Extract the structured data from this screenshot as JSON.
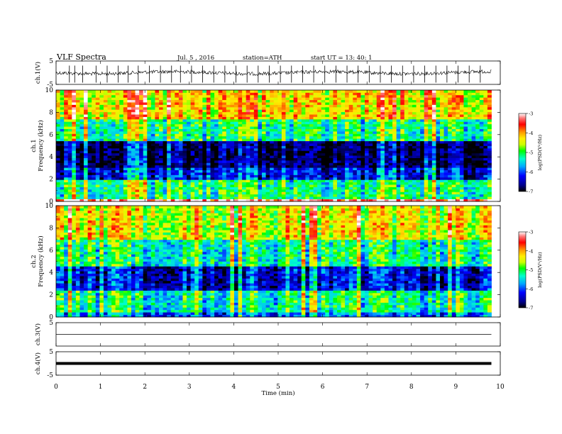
{
  "header": {
    "title": "VLF  Spectra",
    "date": "Jul.  5  , 2016",
    "station": "station=ATH",
    "start_ut": "start  UT  =   13: 40: 1"
  },
  "chart_data": [
    {
      "type": "line",
      "ylabel": "ch.1(V)",
      "ylim": [
        -5,
        5
      ],
      "yticks": [
        "5",
        "-5"
      ],
      "baseline": 0.0,
      "spikes_min": [
        0.3,
        0.42,
        0.6,
        0.9,
        1.15,
        1.4,
        1.62,
        1.85,
        2.1,
        2.35,
        2.6,
        2.8,
        3.05,
        3.3,
        3.55,
        3.8,
        4.05,
        4.3,
        4.55,
        4.8,
        5.05,
        5.3,
        5.55,
        5.8,
        6.05,
        6.3,
        6.55,
        6.8,
        7.05,
        7.3,
        7.55,
        7.8,
        8.05,
        8.3,
        8.55,
        8.8,
        9.05,
        9.3,
        9.55
      ]
    },
    {
      "type": "heatmap",
      "ylabel": "ch.1\nFrequency (kHz)",
      "ylim": [
        0,
        10
      ],
      "yticks": [
        "0",
        "2",
        "4",
        "6",
        "8",
        "10"
      ],
      "colorbar": {
        "label": "log(PSD(V²/Hz)",
        "ticks": [
          "-3",
          "-4",
          "-5",
          "-6",
          "-7"
        ],
        "range": [
          -7,
          -3
        ]
      },
      "description_bands": [
        {
          "fmin": 0.0,
          "fmax": 0.2,
          "level": -3.3
        },
        {
          "fmin": 0.2,
          "fmax": 2.0,
          "level": -5.2
        },
        {
          "fmin": 2.0,
          "fmax": 3.0,
          "level": -6.3
        },
        {
          "fmin": 3.0,
          "fmax": 5.5,
          "level": -6.8
        },
        {
          "fmin": 5.5,
          "fmax": 7.5,
          "level": -5.2
        },
        {
          "fmin": 7.5,
          "fmax": 10.0,
          "level": -4.3
        }
      ]
    },
    {
      "type": "heatmap",
      "ylabel": "ch.2\nFrequency (kHz)",
      "ylim": [
        0,
        10
      ],
      "yticks": [
        "0",
        "2",
        "4",
        "6",
        "8",
        "10"
      ],
      "colorbar": {
        "label": "log(PSD(V²/Hz)",
        "ticks": [
          "-3",
          "-4",
          "-5",
          "-6",
          "-7"
        ],
        "range": [
          -7,
          -3
        ]
      },
      "description_bands": [
        {
          "fmin": 0.0,
          "fmax": 0.4,
          "level": -6.0
        },
        {
          "fmin": 0.4,
          "fmax": 2.5,
          "level": -5.3
        },
        {
          "fmin": 2.5,
          "fmax": 4.5,
          "level": -6.4
        },
        {
          "fmin": 4.5,
          "fmax": 7.0,
          "level": -5.3
        },
        {
          "fmin": 7.0,
          "fmax": 10.0,
          "level": -4.5
        }
      ]
    },
    {
      "type": "line",
      "ylabel": "ch.3(V)",
      "ylim": [
        -5,
        5
      ],
      "yticks": [
        "5"
      ],
      "baseline": 0.0
    },
    {
      "type": "line",
      "ylabel": "ch.4(V)",
      "ylim": [
        -5,
        5
      ],
      "yticks": [
        "5",
        "-5"
      ],
      "baseline": 0.0
    }
  ],
  "x_axis": {
    "label": "Time  (min)",
    "xlim": [
      0,
      10
    ],
    "ticks": [
      "0",
      "1",
      "2",
      "3",
      "4",
      "5",
      "6",
      "7",
      "8",
      "9",
      "10"
    ],
    "data_end": 9.8
  },
  "colors": {
    "axis": "#000000",
    "colormap": [
      "#000000",
      "#00008b",
      "#0000ff",
      "#00aaff",
      "#00ffcc",
      "#00ff00",
      "#ccff00",
      "#ffee00",
      "#ff9900",
      "#ff0000",
      "#ff7777",
      "#ffffff"
    ]
  }
}
